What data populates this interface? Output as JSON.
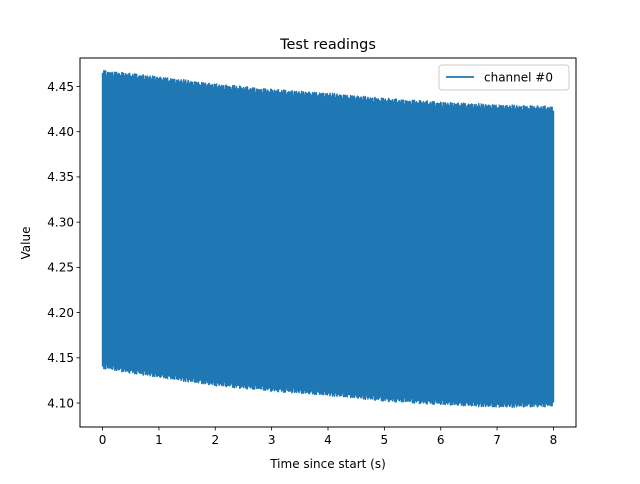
{
  "chart_data": {
    "type": "line",
    "title": "Test readings",
    "xlabel": "Time since start (s)",
    "ylabel": "Value",
    "xlim": [
      -0.4,
      8.4
    ],
    "ylim": [
      4.0735,
      4.4815
    ],
    "xticks": [
      0,
      1,
      2,
      3,
      4,
      5,
      6,
      7,
      8
    ],
    "xtick_labels": [
      "0",
      "1",
      "2",
      "3",
      "4",
      "5",
      "6",
      "7",
      "8"
    ],
    "yticks": [
      4.1,
      4.15,
      4.2,
      4.25,
      4.3,
      4.35,
      4.4,
      4.45
    ],
    "ytick_labels": [
      "4.10",
      "4.15",
      "4.20",
      "4.25",
      "4.30",
      "4.35",
      "4.40",
      "4.45"
    ],
    "grid": false,
    "legend_position": "top-right",
    "series": [
      {
        "name": "channel #0",
        "color": "#1f77b4",
        "x_range": [
          0,
          8
        ],
        "upper_envelope": [
          [
            0,
            4.468
          ],
          [
            1,
            4.461
          ],
          [
            2,
            4.453
          ],
          [
            3,
            4.447
          ],
          [
            4,
            4.443
          ],
          [
            5,
            4.437
          ],
          [
            6,
            4.433
          ],
          [
            7,
            4.43
          ],
          [
            8,
            4.428
          ]
        ],
        "lower_envelope": [
          [
            0,
            4.138
          ],
          [
            1,
            4.128
          ],
          [
            2,
            4.119
          ],
          [
            3,
            4.113
          ],
          [
            4,
            4.108
          ],
          [
            5,
            4.102
          ],
          [
            6,
            4.098
          ],
          [
            7,
            4.095
          ],
          [
            8,
            4.096
          ]
        ],
        "final_value": 4.325
      }
    ]
  }
}
